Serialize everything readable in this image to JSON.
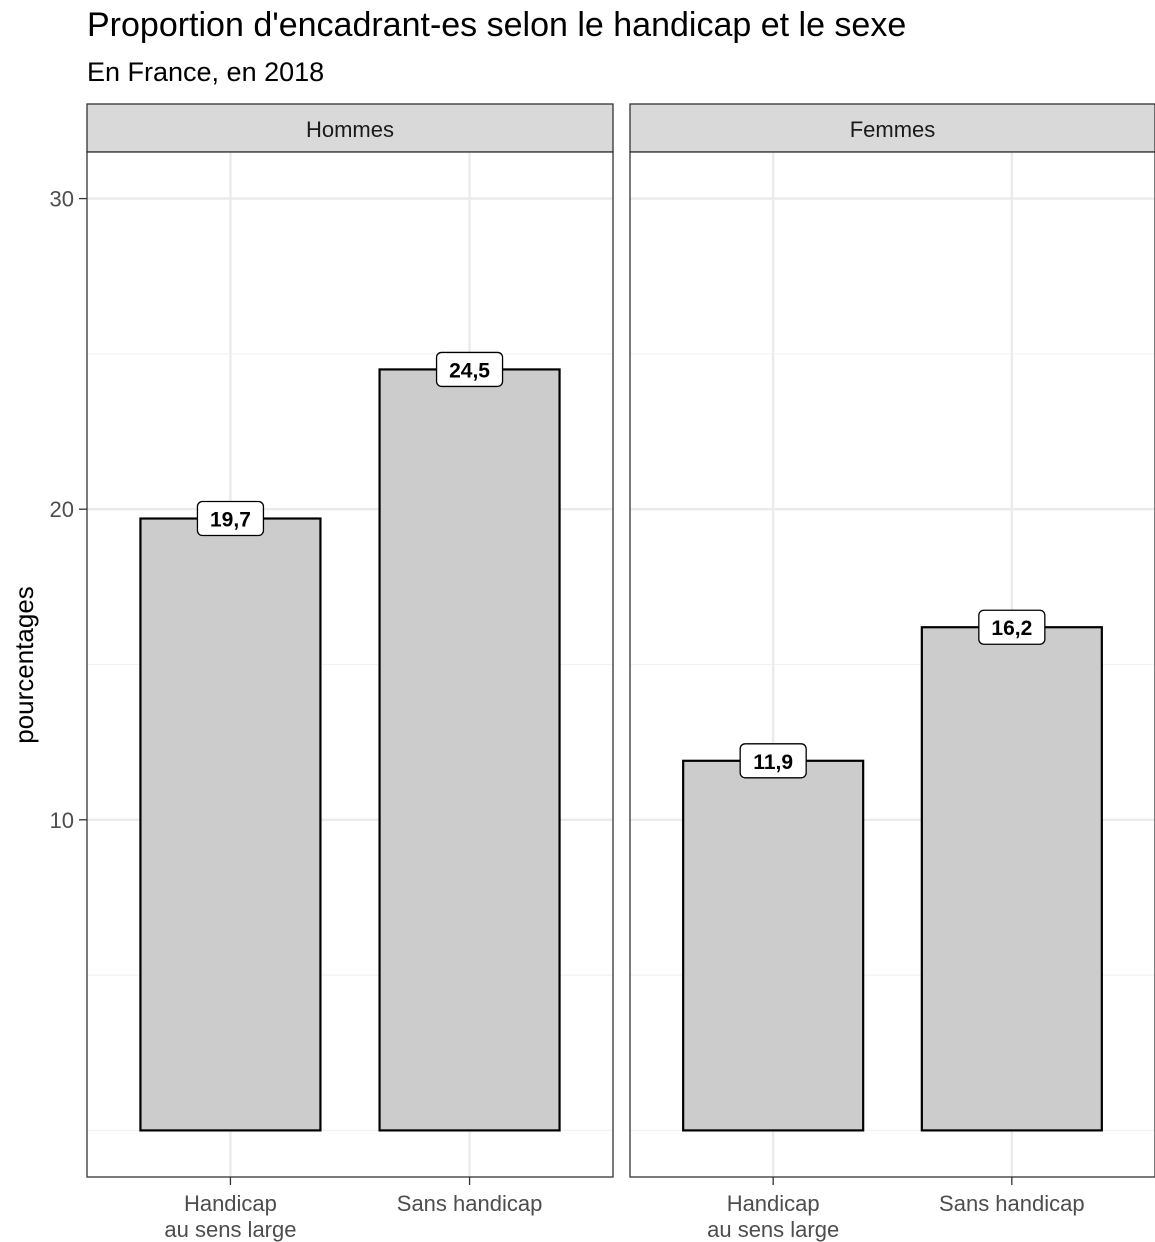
{
  "chart_data": {
    "type": "bar",
    "title": "Proportion d'encadrant-es selon le handicap et le sexe",
    "subtitle": "En France, en 2018",
    "xlabel": "",
    "ylabel": "pourcentages",
    "ylim": [
      -1.5,
      31.5
    ],
    "yticks": [
      10,
      20,
      30
    ],
    "y_tick_labels": [
      "10",
      "20",
      "30"
    ],
    "grid": true,
    "categories": [
      "Handicap\nau sens large",
      "Sans handicap"
    ],
    "category_labels": [
      [
        "Handicap",
        "au sens large"
      ],
      [
        "Sans handicap"
      ]
    ],
    "panels": [
      {
        "name": "Hommes",
        "values": [
          19.7,
          24.5
        ],
        "labels": [
          "19,7",
          "24,5"
        ]
      },
      {
        "name": "Femmes",
        "values": [
          11.9,
          16.2
        ],
        "labels": [
          "11,9",
          "16,2"
        ]
      }
    ],
    "colors": {
      "bar_fill": "#cccccc",
      "bar_stroke": "#000000",
      "strip_fill": "#d9d9d9",
      "grid": "#ebebeb"
    }
  }
}
